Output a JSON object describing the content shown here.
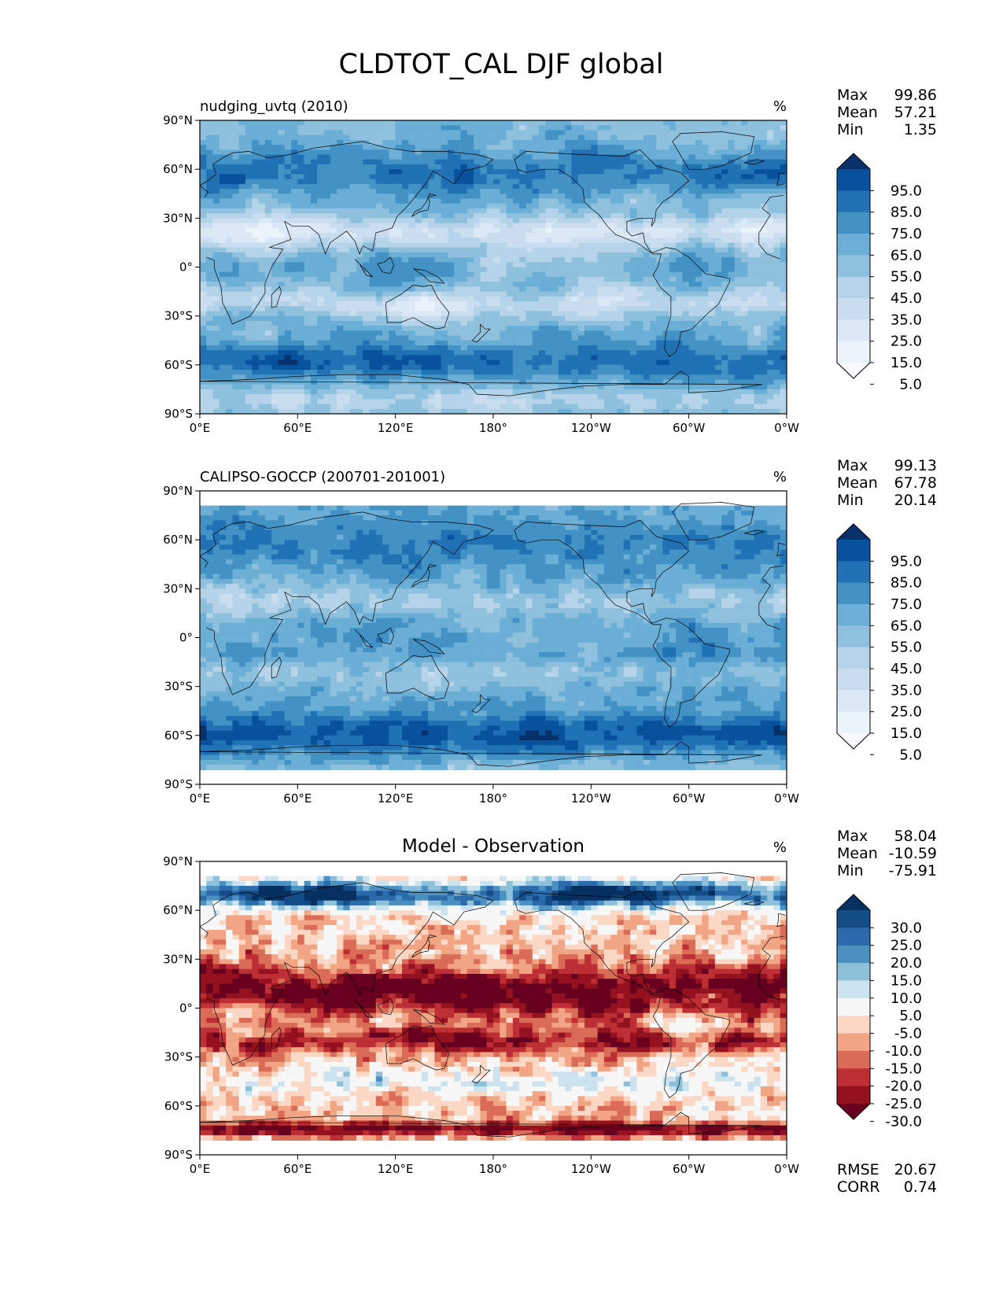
{
  "figure": {
    "title": "CLDTOT_CAL DJF global"
  },
  "chart_data": [
    {
      "type": "heatmap",
      "name": "model",
      "title": "",
      "left_title": "nudging_uvtq (2010)",
      "units": "%",
      "stats": [
        {
          "label": "Max",
          "value": "99.86"
        },
        {
          "label": "Mean",
          "value": "57.21"
        },
        {
          "label": "Min",
          "value": "1.35"
        }
      ],
      "x_ticks": [
        "0°E",
        "60°E",
        "120°E",
        "180°",
        "120°W",
        "60°W",
        "0°W"
      ],
      "y_ticks": [
        "90°N",
        "60°N",
        "30°N",
        "0°",
        "30°S",
        "60°S",
        "90°S"
      ],
      "xlim": [
        0,
        360
      ],
      "ylim": [
        -90,
        90
      ],
      "colorbar": {
        "labels": [
          "95.0",
          "85.0",
          "75.0",
          "65.0",
          "55.0",
          "45.0",
          "35.0",
          "25.0",
          "15.0",
          "5.0"
        ],
        "colors": [
          "#08306b",
          "#08519c",
          "#2171b5",
          "#4292c6",
          "#6baed6",
          "#8fc1de",
          "#b6d4e9",
          "#cadef0",
          "#dbe9f6",
          "#ebf3fb",
          "#f7fbff"
        ]
      }
    },
    {
      "type": "heatmap",
      "name": "observation",
      "title": "",
      "left_title": "CALIPSO-GOCCP (200701-201001)",
      "units": "%",
      "stats": [
        {
          "label": "Max",
          "value": "99.13"
        },
        {
          "label": "Mean",
          "value": "67.78"
        },
        {
          "label": "Min",
          "value": "20.14"
        }
      ],
      "x_ticks": [
        "0°E",
        "60°E",
        "120°E",
        "180°",
        "120°W",
        "60°W",
        "0°W"
      ],
      "y_ticks": [
        "90°N",
        "60°N",
        "30°N",
        "0°",
        "30°S",
        "60°S",
        "90°S"
      ],
      "xlim": [
        0,
        360
      ],
      "ylim": [
        -90,
        90
      ],
      "lat_coverage": [
        -82,
        82
      ],
      "colorbar": {
        "labels": [
          "95.0",
          "85.0",
          "75.0",
          "65.0",
          "55.0",
          "45.0",
          "35.0",
          "25.0",
          "15.0",
          "5.0"
        ],
        "colors": [
          "#08306b",
          "#08519c",
          "#2171b5",
          "#4292c6",
          "#6baed6",
          "#8fc1de",
          "#b6d4e9",
          "#cadef0",
          "#dbe9f6",
          "#ebf3fb",
          "#f7fbff"
        ]
      }
    },
    {
      "type": "heatmap",
      "name": "difference",
      "title": "Model - Observation",
      "left_title": "",
      "units": "%",
      "stats": [
        {
          "label": "Max",
          "value": "58.04"
        },
        {
          "label": "Mean",
          "value": "-10.59"
        },
        {
          "label": "Min",
          "value": "-75.91"
        }
      ],
      "extra_stats": [
        {
          "label": "RMSE",
          "value": "20.67"
        },
        {
          "label": "CORR",
          "value": "0.74"
        }
      ],
      "x_ticks": [
        "0°E",
        "60°E",
        "120°E",
        "180°",
        "120°W",
        "60°W",
        "0°W"
      ],
      "y_ticks": [
        "90°N",
        "60°N",
        "30°N",
        "0°",
        "30°S",
        "60°S",
        "90°S"
      ],
      "xlim": [
        0,
        360
      ],
      "ylim": [
        -90,
        90
      ],
      "lat_coverage": [
        -82,
        82
      ],
      "colorbar": {
        "labels": [
          "30.0",
          "25.0",
          "20.0",
          "15.0",
          "10.0",
          "5.0",
          "-5.0",
          "-10.0",
          "-15.0",
          "-20.0",
          "-25.0",
          "-30.0"
        ],
        "colors": [
          "#053061",
          "#134c87",
          "#2c6bab",
          "#4a91c2",
          "#8ec0da",
          "#cce2ee",
          "#f7f7f7",
          "#fbd8c6",
          "#f1a584",
          "#da6c57",
          "#bd2f35",
          "#94111f",
          "#67001f"
        ]
      }
    }
  ]
}
